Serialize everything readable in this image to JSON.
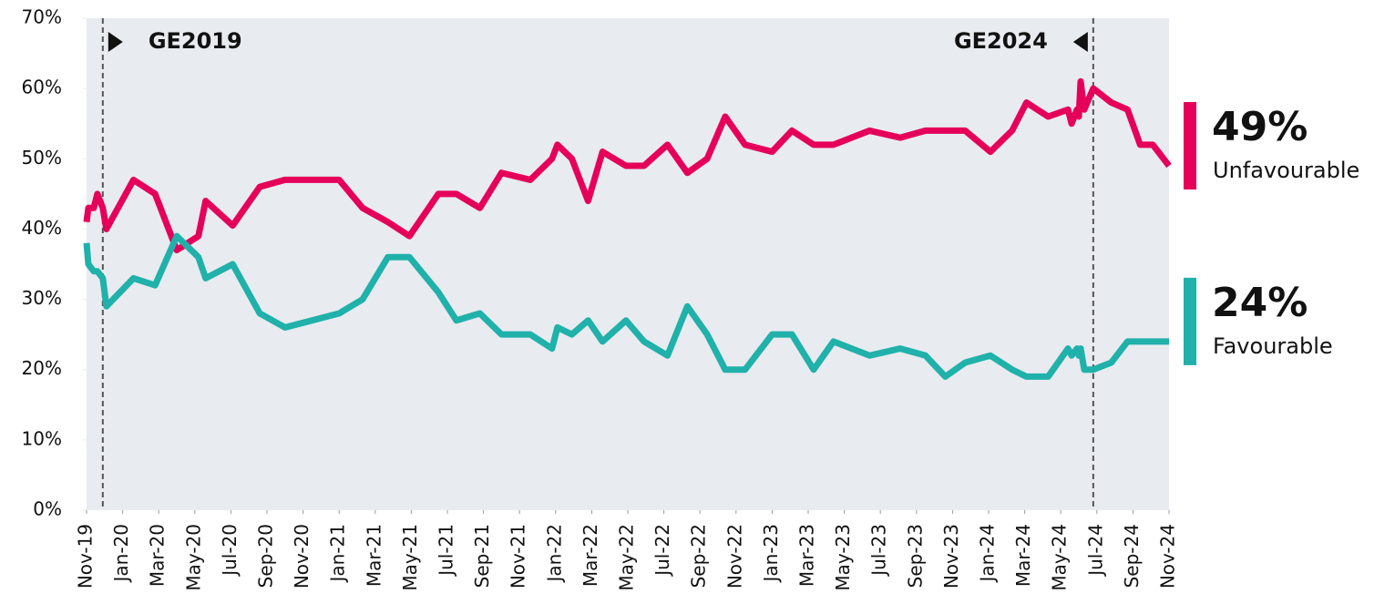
{
  "chart_data": {
    "type": "line",
    "x": [
      0,
      0.1,
      0.4,
      0.6,
      0.9,
      1.1,
      2.6,
      3.8,
      5.0,
      6.2,
      6.6,
      8.1,
      9.6,
      11.0,
      14.0,
      15.3,
      16.7,
      17.9,
      19.5,
      20.5,
      21.8,
      23.0,
      24.6,
      25.8,
      26.1,
      26.9,
      27.8,
      28.6,
      29.9,
      30.9,
      32.2,
      33.3,
      34.4,
      35.4,
      36.5,
      38.0,
      39.1,
      40.3,
      41.4,
      43.4,
      45.1,
      46.5,
      47.6,
      48.7,
      50.1,
      51.3,
      52.1,
      53.3,
      54.4,
      54.6,
      54.9,
      55.0,
      55.1,
      55.3,
      55.8,
      56.8,
      57.7,
      58.4,
      59.1,
      60
    ],
    "series": [
      {
        "name": "Unfavourable",
        "color": "#e5005a",
        "values": [
          41,
          43,
          43,
          45,
          43,
          40,
          47,
          45,
          37,
          39,
          44,
          40.5,
          46,
          47,
          47,
          43,
          41,
          39,
          45,
          45,
          43,
          48,
          47,
          50,
          52,
          50,
          44,
          51,
          49,
          49,
          52,
          48,
          50,
          56,
          52,
          51,
          54,
          52,
          52,
          54,
          53,
          54,
          54,
          54,
          51,
          54,
          58,
          56,
          57,
          55,
          57,
          56,
          61,
          57,
          60,
          58,
          57,
          52,
          52,
          49
        ]
      },
      {
        "name": "Favourable",
        "color": "#1fb1aa",
        "values": [
          38,
          35,
          34,
          34,
          33,
          29,
          33,
          32,
          39,
          36,
          33,
          35,
          28,
          26,
          28,
          30,
          36,
          36,
          31,
          27,
          28,
          25,
          25,
          23,
          26,
          25,
          27,
          24,
          27,
          24,
          22,
          29,
          25,
          20,
          20,
          25,
          25,
          20,
          24,
          22,
          23,
          22,
          19,
          21,
          22,
          20,
          19,
          19,
          23,
          22,
          23,
          22,
          23,
          20,
          20,
          21,
          24,
          24,
          24,
          24
        ]
      }
    ],
    "end_labels": [
      {
        "value": 49,
        "label": "49%"
      },
      {
        "value": 24,
        "label": "24%"
      }
    ],
    "annotations": [
      {
        "text": "GE2019",
        "x": 0.9
      },
      {
        "text": "GE2024",
        "x": 55.8
      }
    ],
    "xlim": [
      0,
      60
    ],
    "xticks": [
      {
        "value": 0,
        "label": "Nov-19"
      },
      {
        "value": 2,
        "label": "Jan-20"
      },
      {
        "value": 4,
        "label": "Mar-20"
      },
      {
        "value": 6,
        "label": "May-20"
      },
      {
        "value": 8,
        "label": "Jul-20"
      },
      {
        "value": 10,
        "label": "Sep-20"
      },
      {
        "value": 12,
        "label": "Nov-20"
      },
      {
        "value": 14,
        "label": "Jan-21"
      },
      {
        "value": 16,
        "label": "Mar-21"
      },
      {
        "value": 18,
        "label": "May-21"
      },
      {
        "value": 20,
        "label": "Jul-21"
      },
      {
        "value": 22,
        "label": "Sep-21"
      },
      {
        "value": 24,
        "label": "Nov-21"
      },
      {
        "value": 26,
        "label": "Jan-22"
      },
      {
        "value": 28,
        "label": "Mar-22"
      },
      {
        "value": 30,
        "label": "May-22"
      },
      {
        "value": 32,
        "label": "Jul-22"
      },
      {
        "value": 34,
        "label": "Sep-22"
      },
      {
        "value": 36,
        "label": "Nov-22"
      },
      {
        "value": 38,
        "label": "Jan-23"
      },
      {
        "value": 40,
        "label": "Mar-23"
      },
      {
        "value": 42,
        "label": "May-23"
      },
      {
        "value": 44,
        "label": "Jul-23"
      },
      {
        "value": 46,
        "label": "Sep-23"
      },
      {
        "value": 48,
        "label": "Nov-23"
      },
      {
        "value": 50,
        "label": "Jan-24"
      },
      {
        "value": 52,
        "label": "Mar-24"
      },
      {
        "value": 54,
        "label": "May-24"
      },
      {
        "value": 56,
        "label": "Jul-24"
      },
      {
        "value": 58,
        "label": "Sep-24"
      },
      {
        "value": 60,
        "label": "Nov-24"
      }
    ],
    "ylim": [
      0,
      70
    ],
    "yticks": [
      {
        "value": 0,
        "label": "0%"
      },
      {
        "value": 10,
        "label": "10%"
      },
      {
        "value": 20,
        "label": "20%"
      },
      {
        "value": 30,
        "label": "30%"
      },
      {
        "value": 40,
        "label": "40%"
      },
      {
        "value": 50,
        "label": "50%"
      },
      {
        "value": 60,
        "label": "60%"
      },
      {
        "value": 70,
        "label": "70%"
      }
    ]
  }
}
